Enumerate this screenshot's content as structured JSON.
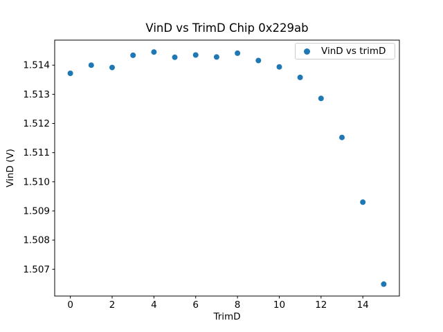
{
  "figure": {
    "title": "VinD vs TrimD Chip 0x229ab",
    "xlabel": "TrimD",
    "ylabel": "VinD (V)"
  },
  "chart_data": {
    "type": "scatter",
    "title": "VinD vs TrimD Chip 0x229ab",
    "xlabel": "TrimD",
    "ylabel": "VinD (V)",
    "grid": false,
    "legend_position": "upper right",
    "xlim": [
      -0.75,
      15.75
    ],
    "ylim": [
      1.506081,
      1.514859
    ],
    "xticks": [
      0,
      2,
      4,
      6,
      8,
      10,
      12,
      14
    ],
    "yticks": [
      1.507,
      1.508,
      1.509,
      1.51,
      1.511,
      1.512,
      1.513,
      1.514
    ],
    "series": [
      {
        "name": "VinD vs trimD",
        "marker_color": "#1f77b4",
        "x": [
          0,
          1,
          2,
          3,
          4,
          5,
          6,
          7,
          8,
          9,
          10,
          11,
          12,
          13,
          14,
          15
        ],
        "y": [
          1.51372,
          1.514,
          1.51392,
          1.51434,
          1.51445,
          1.51427,
          1.51435,
          1.51428,
          1.51441,
          1.51416,
          1.51394,
          1.51358,
          1.51286,
          1.51152,
          1.5093,
          1.50649
        ]
      }
    ]
  }
}
